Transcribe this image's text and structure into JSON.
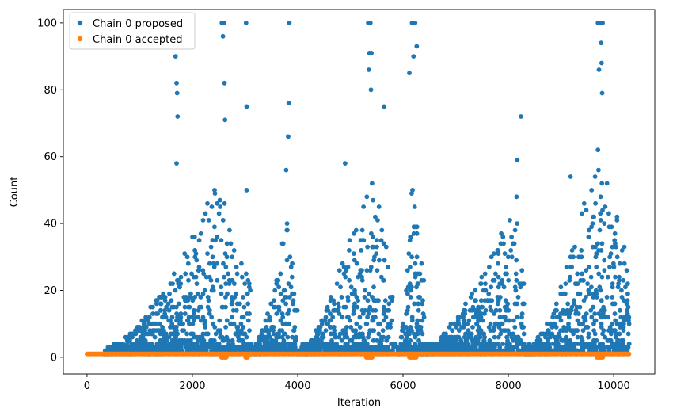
{
  "chart_data": {
    "type": "scatter",
    "title": "",
    "xlabel": "Iteration",
    "ylabel": "Count",
    "xlim": [
      -450,
      10780
    ],
    "ylim": [
      -5,
      104
    ],
    "xticks": [
      0,
      2000,
      4000,
      6000,
      8000,
      10000
    ],
    "yticks": [
      0,
      20,
      40,
      60,
      80,
      100
    ],
    "legend": {
      "placement": "top-left"
    },
    "grid": false,
    "series": [
      {
        "name": "Chain 0 proposed",
        "color": "#1f77b4",
        "approx": true,
        "bursts": [
          {
            "x_start": 300,
            "x_end": 3100,
            "peak_at": 2500,
            "peak": 52,
            "outliers": [
              [
                1680,
                90
              ],
              [
                1700,
                82
              ],
              [
                1710,
                79
              ],
              [
                1720,
                72
              ],
              [
                1700,
                58
              ],
              [
                2560,
                100
              ],
              [
                2600,
                100
              ],
              [
                2580,
                96
              ],
              [
                2610,
                82
              ],
              [
                2620,
                71
              ],
              [
                3020,
                100
              ],
              [
                3030,
                75
              ],
              [
                3030,
                50
              ]
            ]
          },
          {
            "x_start": 3100,
            "x_end": 4000,
            "peak_at": 3800,
            "peak": 40,
            "outliers": [
              [
                3840,
                100
              ],
              [
                3830,
                76
              ],
              [
                3820,
                66
              ],
              [
                3780,
                56
              ]
            ]
          },
          {
            "x_start": 4000,
            "x_end": 5800,
            "peak_at": 5400,
            "peak": 60,
            "outliers": [
              [
                5340,
                100
              ],
              [
                5380,
                100
              ],
              [
                5360,
                91
              ],
              [
                5400,
                91
              ],
              [
                5350,
                86
              ],
              [
                5390,
                80
              ],
              [
                5640,
                75
              ],
              [
                4900,
                58
              ]
            ]
          },
          {
            "x_start": 5900,
            "x_end": 6400,
            "peak_at": 6200,
            "peak": 60,
            "outliers": [
              [
                6170,
                100
              ],
              [
                6210,
                100
              ],
              [
                6230,
                100
              ],
              [
                6260,
                93
              ],
              [
                6120,
                85
              ],
              [
                6200,
                90
              ]
            ]
          },
          {
            "x_start": 6300,
            "x_end": 8300,
            "peak_at": 8200,
            "peak": 48,
            "outliers": [
              [
                8240,
                72
              ],
              [
                8170,
                59
              ]
            ]
          },
          {
            "x_start": 8300,
            "x_end": 10300,
            "peak_at": 9750,
            "peak": 65,
            "outliers": [
              [
                9700,
                100
              ],
              [
                9740,
                100
              ],
              [
                9790,
                100
              ],
              [
                9720,
                86
              ],
              [
                9760,
                94
              ],
              [
                9770,
                88
              ],
              [
                9780,
                79
              ],
              [
                9180,
                54
              ]
            ]
          }
        ]
      },
      {
        "name": "Chain 0 accepted",
        "color": "#ff7f0e",
        "approx": true,
        "x_range": [
          0,
          10300
        ],
        "y_values": [
          1
        ],
        "zero_clusters": [
          [
            2550,
            2650
          ],
          [
            3010,
            3050
          ],
          [
            5300,
            5420
          ],
          [
            6120,
            6260
          ],
          [
            9680,
            9800
          ]
        ]
      }
    ]
  }
}
